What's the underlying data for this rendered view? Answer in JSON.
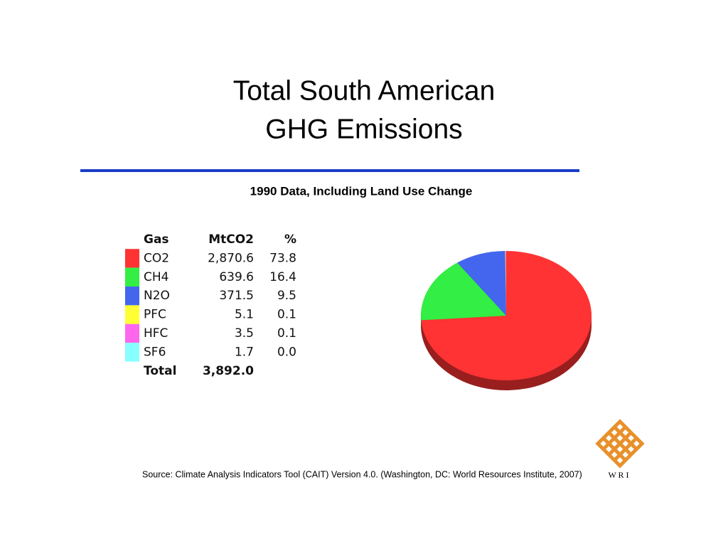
{
  "title_lines": [
    "Total South American",
    "GHG Emissions"
  ],
  "subtitle": "1990 Data, Including Land Use Change",
  "source": "Source: Climate Analysis Indicators Tool (CAIT) Version 4.0. (Washington, DC: World Resources Institute, 2007)",
  "logo_text": "W R I",
  "chart_data": {
    "type": "pie",
    "columns": [
      "Gas",
      "MtCO2",
      "%"
    ],
    "categories": [
      "CO2",
      "CH4",
      "N2O",
      "PFC",
      "HFC",
      "SF6"
    ],
    "values": [
      73.8,
      16.4,
      9.5,
      0.1,
      0.1,
      0.0
    ],
    "value_labels": [
      "73.8",
      "16.4",
      "9.5",
      "0.1",
      "0.1",
      "0.0"
    ],
    "amounts": [
      2870.6,
      639.6,
      371.5,
      5.1,
      3.5,
      1.7
    ],
    "amount_labels": [
      "2,870.6",
      "639.6",
      "371.5",
      "5.1",
      "3.5",
      "1.7"
    ],
    "colors": [
      "#ff3333",
      "#33ee44",
      "#4466ee",
      "#ffff33",
      "#ff66ee",
      "#88ffff"
    ],
    "total_label": "Total",
    "total": 3892.0,
    "total_label_value": "3,892.0"
  }
}
